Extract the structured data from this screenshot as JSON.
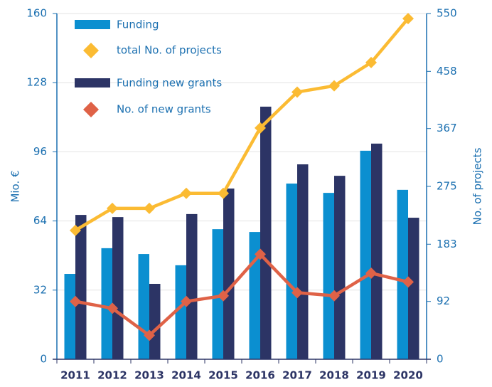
{
  "chart_data": {
    "type": "bar",
    "categories": [
      "2011",
      "2012",
      "2013",
      "2014",
      "2015",
      "2016",
      "2017",
      "2018",
      "2019",
      "2020"
    ],
    "series": [
      {
        "name": "Funding",
        "type": "bar",
        "color": "#0b8fd0",
        "values": [
          39.5,
          51.4,
          48.7,
          43.5,
          60.2,
          58.9,
          81.3,
          77,
          96.5,
          78.4
        ]
      },
      {
        "name": "total No. of projects",
        "type": "line",
        "axis": "y2",
        "color": "#fbbb33",
        "values": [
          205,
          240,
          240,
          264,
          264,
          368,
          425,
          435,
          472,
          542
        ]
      },
      {
        "name": "Funding new grants",
        "type": "bar",
        "color": "#2c3465",
        "values": [
          66.8,
          65.8,
          34.9,
          67.2,
          79,
          116.9,
          90.2,
          84.9,
          99.8,
          65.5
        ]
      },
      {
        "name": "No. of new grants",
        "type": "line",
        "axis": "y2",
        "color": "#df6247",
        "values": [
          92,
          81,
          38,
          92,
          101,
          167,
          106,
          101,
          137,
          123
        ]
      }
    ],
    "ylabel": "Mio. €",
    "y2label": "No. of projects",
    "ylim": [
      0,
      160
    ],
    "yticks": [
      0,
      32,
      64,
      96,
      128,
      160
    ],
    "y2lim": [
      0,
      550
    ],
    "y2ticks": [
      0,
      92,
      183,
      275,
      367,
      458,
      550
    ],
    "grid": true,
    "legend": "upper left"
  }
}
